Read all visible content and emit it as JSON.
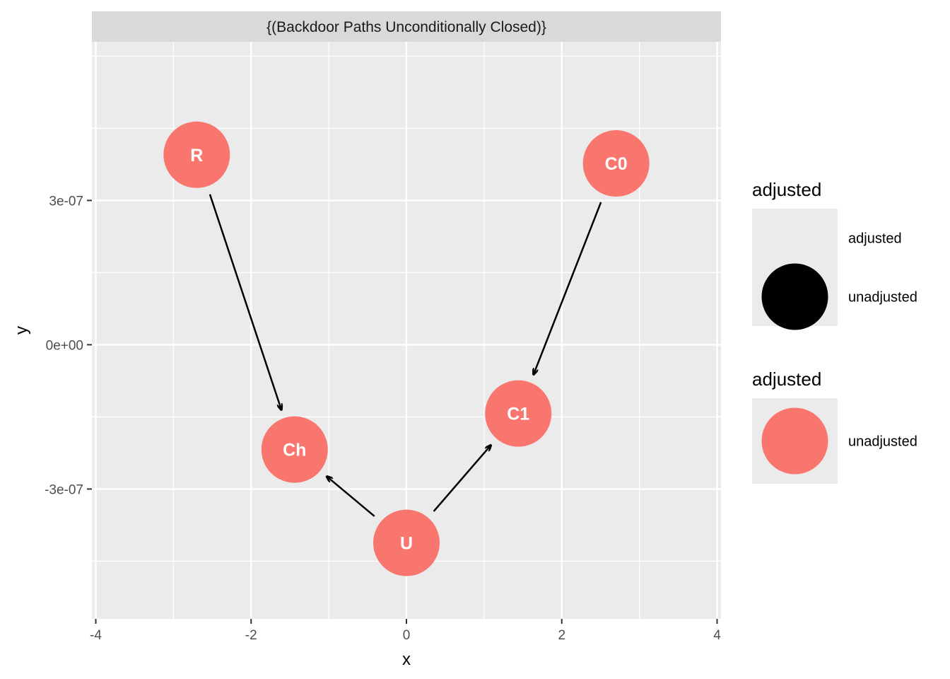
{
  "chart_data": {
    "type": "dag",
    "facet_title": "{(Backdoor Paths Unconditionally Closed)}",
    "xlabel": "x",
    "ylabel": "y",
    "xlim": [
      -4.05,
      4.05
    ],
    "ylim": [
      -5.7e-07,
      6.3e-07
    ],
    "x_ticks": [
      {
        "value": -4,
        "label": "-4"
      },
      {
        "value": -2,
        "label": "-2"
      },
      {
        "value": 0,
        "label": "0"
      },
      {
        "value": 2,
        "label": "2"
      },
      {
        "value": 4,
        "label": "4"
      }
    ],
    "y_ticks": [
      {
        "value": -3e-07,
        "label": "-3e-07"
      },
      {
        "value": 0,
        "label": "0e+00"
      },
      {
        "value": 3e-07,
        "label": "3e-07"
      }
    ],
    "nodes": [
      {
        "name": "R",
        "x": -2.7,
        "y": 3.95e-07,
        "adjusted": "unadjusted"
      },
      {
        "name": "C0",
        "x": 2.7,
        "y": 3.77e-07,
        "adjusted": "unadjusted"
      },
      {
        "name": "Ch",
        "x": -1.44,
        "y": -2.18e-07,
        "adjusted": "unadjusted"
      },
      {
        "name": "C1",
        "x": 1.44,
        "y": -1.43e-07,
        "adjusted": "unadjusted"
      },
      {
        "name": "U",
        "x": 0,
        "y": -4.12e-07,
        "adjusted": "unadjusted"
      }
    ],
    "edges": [
      {
        "from": "R",
        "to": "Ch"
      },
      {
        "from": "C0",
        "to": "C1"
      },
      {
        "from": "U",
        "to": "Ch"
      },
      {
        "from": "U",
        "to": "C1"
      }
    ],
    "colors": {
      "unadjusted": "#F8766D",
      "adjusted": "#000000",
      "panel": "#EBEBEB",
      "strip": "#D9D9D9",
      "grid": "#FFFFFF"
    },
    "legends": [
      {
        "title": "adjusted",
        "entries": [
          {
            "label": "adjusted",
            "color": ""
          },
          {
            "label": "unadjusted",
            "color": "#000000"
          }
        ]
      },
      {
        "title": "adjusted",
        "entries": [
          {
            "label": "unadjusted",
            "color": "#F8766D"
          }
        ]
      }
    ]
  }
}
